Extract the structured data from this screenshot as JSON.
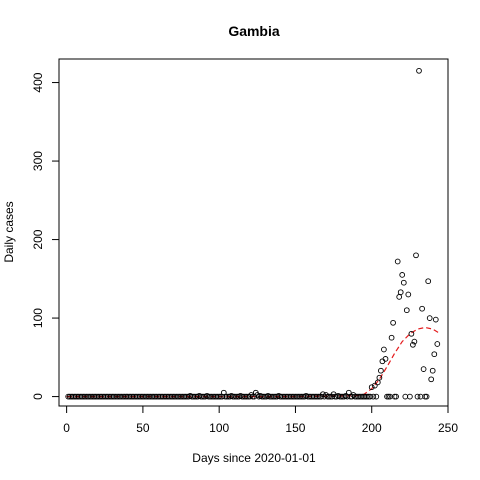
{
  "chart_data": {
    "type": "scatter",
    "title": "Gambia",
    "xlabel": "Days since 2020-01-01",
    "ylabel": "Daily cases",
    "xlim": [
      -5,
      250
    ],
    "ylim": [
      -12,
      430
    ],
    "xticks": [
      0,
      50,
      100,
      150,
      200,
      250
    ],
    "yticks": [
      0,
      100,
      200,
      300,
      400
    ],
    "grid": false,
    "point_color": "#000000",
    "smooth_color": "#e41a1c",
    "series": [
      {
        "style": "open-circles",
        "points": [
          [
            1,
            0
          ],
          [
            2,
            0
          ],
          [
            3,
            0
          ],
          [
            4,
            0
          ],
          [
            5,
            0
          ],
          [
            6,
            0
          ],
          [
            7,
            0
          ],
          [
            8,
            0
          ],
          [
            9,
            0
          ],
          [
            10,
            0
          ],
          [
            11,
            0
          ],
          [
            12,
            0
          ],
          [
            13,
            0
          ],
          [
            14,
            0
          ],
          [
            15,
            0
          ],
          [
            16,
            0
          ],
          [
            17,
            0
          ],
          [
            18,
            0
          ],
          [
            19,
            0
          ],
          [
            20,
            0
          ],
          [
            21,
            0
          ],
          [
            22,
            0
          ],
          [
            23,
            0
          ],
          [
            24,
            0
          ],
          [
            25,
            0
          ],
          [
            26,
            0
          ],
          [
            27,
            0
          ],
          [
            28,
            0
          ],
          [
            29,
            0
          ],
          [
            30,
            0
          ],
          [
            31,
            0
          ],
          [
            32,
            0
          ],
          [
            33,
            0
          ],
          [
            34,
            0
          ],
          [
            35,
            0
          ],
          [
            36,
            0
          ],
          [
            37,
            0
          ],
          [
            38,
            0
          ],
          [
            39,
            0
          ],
          [
            40,
            0
          ],
          [
            41,
            0
          ],
          [
            42,
            0
          ],
          [
            43,
            0
          ],
          [
            44,
            0
          ],
          [
            45,
            0
          ],
          [
            46,
            0
          ],
          [
            47,
            0
          ],
          [
            48,
            0
          ],
          [
            49,
            0
          ],
          [
            50,
            0
          ],
          [
            51,
            0
          ],
          [
            52,
            0
          ],
          [
            53,
            0
          ],
          [
            54,
            0
          ],
          [
            55,
            0
          ],
          [
            56,
            0
          ],
          [
            57,
            0
          ],
          [
            58,
            0
          ],
          [
            59,
            0
          ],
          [
            60,
            0
          ],
          [
            61,
            0
          ],
          [
            62,
            0
          ],
          [
            63,
            0
          ],
          [
            64,
            0
          ],
          [
            65,
            0
          ],
          [
            66,
            0
          ],
          [
            67,
            0
          ],
          [
            68,
            0
          ],
          [
            69,
            0
          ],
          [
            70,
            0
          ],
          [
            71,
            0
          ],
          [
            72,
            0
          ],
          [
            73,
            0
          ],
          [
            74,
            0
          ],
          [
            75,
            0
          ],
          [
            76,
            0
          ],
          [
            77,
            0
          ],
          [
            78,
            0
          ],
          [
            79,
            0
          ],
          [
            80,
            0
          ],
          [
            81,
            1
          ],
          [
            82,
            0
          ],
          [
            83,
            0
          ],
          [
            84,
            0
          ],
          [
            85,
            0
          ],
          [
            86,
            0
          ],
          [
            87,
            1
          ],
          [
            88,
            0
          ],
          [
            89,
            0
          ],
          [
            90,
            0
          ],
          [
            91,
            0
          ],
          [
            92,
            1
          ],
          [
            93,
            0
          ],
          [
            94,
            0
          ],
          [
            95,
            0
          ],
          [
            96,
            0
          ],
          [
            97,
            0
          ],
          [
            98,
            0
          ],
          [
            99,
            0
          ],
          [
            100,
            0
          ],
          [
            101,
            0
          ],
          [
            102,
            0
          ],
          [
            103,
            5
          ],
          [
            104,
            0
          ],
          [
            105,
            0
          ],
          [
            106,
            0
          ],
          [
            107,
            0
          ],
          [
            108,
            1
          ],
          [
            109,
            0
          ],
          [
            110,
            0
          ],
          [
            111,
            0
          ],
          [
            112,
            0
          ],
          [
            113,
            0
          ],
          [
            114,
            1
          ],
          [
            115,
            0
          ],
          [
            116,
            0
          ],
          [
            117,
            0
          ],
          [
            118,
            0
          ],
          [
            119,
            0
          ],
          [
            120,
            0
          ],
          [
            121,
            2
          ],
          [
            122,
            0
          ],
          [
            123,
            0
          ],
          [
            124,
            5
          ],
          [
            125,
            2
          ],
          [
            126,
            0
          ],
          [
            127,
            1
          ],
          [
            128,
            0
          ],
          [
            129,
            0
          ],
          [
            130,
            0
          ],
          [
            131,
            0
          ],
          [
            132,
            1
          ],
          [
            133,
            0
          ],
          [
            134,
            0
          ],
          [
            135,
            0
          ],
          [
            136,
            0
          ],
          [
            137,
            0
          ],
          [
            138,
            0
          ],
          [
            139,
            1
          ],
          [
            140,
            0
          ],
          [
            141,
            0
          ],
          [
            142,
            0
          ],
          [
            143,
            0
          ],
          [
            144,
            0
          ],
          [
            145,
            0
          ],
          [
            146,
            0
          ],
          [
            147,
            0
          ],
          [
            148,
            0
          ],
          [
            149,
            0
          ],
          [
            150,
            0
          ],
          [
            151,
            0
          ],
          [
            152,
            0
          ],
          [
            153,
            0
          ],
          [
            154,
            0
          ],
          [
            155,
            0
          ],
          [
            156,
            0
          ],
          [
            157,
            1
          ],
          [
            158,
            0
          ],
          [
            159,
            0
          ],
          [
            160,
            0
          ],
          [
            161,
            0
          ],
          [
            162,
            0
          ],
          [
            163,
            0
          ],
          [
            164,
            0
          ],
          [
            165,
            0
          ],
          [
            166,
            0
          ],
          [
            167,
            0
          ],
          [
            168,
            3
          ],
          [
            169,
            0
          ],
          [
            170,
            2
          ],
          [
            171,
            0
          ],
          [
            172,
            0
          ],
          [
            173,
            0
          ],
          [
            174,
            0
          ],
          [
            175,
            3
          ],
          [
            176,
            0
          ],
          [
            177,
            0
          ],
          [
            178,
            1
          ],
          [
            179,
            0
          ],
          [
            180,
            0
          ],
          [
            181,
            0
          ],
          [
            182,
            0
          ],
          [
            183,
            1
          ],
          [
            184,
            0
          ],
          [
            185,
            5
          ],
          [
            186,
            0
          ],
          [
            187,
            0
          ],
          [
            188,
            2
          ],
          [
            189,
            0
          ],
          [
            190,
            0
          ],
          [
            191,
            0
          ],
          [
            192,
            0
          ],
          [
            193,
            0
          ],
          [
            194,
            0
          ],
          [
            195,
            0
          ],
          [
            196,
            0
          ],
          [
            197,
            0
          ],
          [
            198,
            0
          ],
          [
            199,
            0
          ],
          [
            200,
            12
          ],
          [
            201,
            0
          ],
          [
            202,
            14
          ],
          [
            203,
            0
          ],
          [
            204,
            18
          ],
          [
            205,
            24
          ],
          [
            206,
            33
          ],
          [
            207,
            45
          ],
          [
            208,
            60
          ],
          [
            209,
            48
          ],
          [
            210,
            0
          ],
          [
            211,
            0
          ],
          [
            212,
            0
          ],
          [
            213,
            75
          ],
          [
            214,
            94
          ],
          [
            215,
            0
          ],
          [
            216,
            0
          ],
          [
            217,
            172
          ],
          [
            218,
            127
          ],
          [
            219,
            133
          ],
          [
            220,
            155
          ],
          [
            221,
            145
          ],
          [
            222,
            0
          ],
          [
            223,
            110
          ],
          [
            224,
            130
          ],
          [
            225,
            0
          ],
          [
            226,
            80
          ],
          [
            227,
            66
          ],
          [
            228,
            70
          ],
          [
            229,
            180
          ],
          [
            230,
            0
          ],
          [
            231,
            415
          ],
          [
            232,
            0
          ],
          [
            233,
            112
          ],
          [
            234,
            35
          ],
          [
            235,
            0
          ],
          [
            236,
            0
          ],
          [
            237,
            147
          ],
          [
            238,
            100
          ],
          [
            239,
            22
          ],
          [
            240,
            33
          ],
          [
            241,
            54
          ],
          [
            242,
            98
          ],
          [
            243,
            67
          ]
        ]
      },
      {
        "style": "dashed-smooth",
        "x": [
          0,
          50,
          100,
          150,
          190,
          195,
          200,
          205,
          210,
          215,
          220,
          225,
          230,
          235,
          240,
          245
        ],
        "y": [
          0,
          0,
          0,
          0,
          1,
          3,
          10,
          22,
          38,
          55,
          70,
          80,
          86,
          88,
          86,
          80
        ]
      }
    ]
  }
}
